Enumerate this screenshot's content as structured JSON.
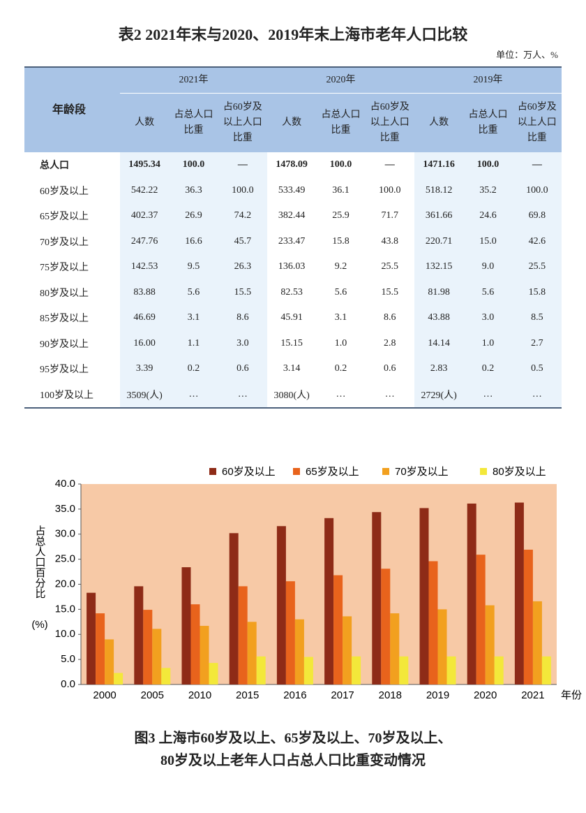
{
  "table": {
    "title": "表2 2021年末与2020、2019年末上海市老年人口比较",
    "unit": "单位：万人、%",
    "header": {
      "age_group": "年龄段",
      "years": [
        "2021年",
        "2020年",
        "2019年"
      ],
      "columns": [
        "人数",
        "占总人口比重",
        "占60岁及以上人口比重"
      ]
    },
    "rows": [
      [
        "总人口",
        "1495.34",
        "100.0",
        "—",
        "1478.09",
        "100.0",
        "—",
        "1471.16",
        "100.0",
        "—"
      ],
      [
        "60岁及以上",
        "542.22",
        "36.3",
        "100.0",
        "533.49",
        "36.1",
        "100.0",
        "518.12",
        "35.2",
        "100.0"
      ],
      [
        "65岁及以上",
        "402.37",
        "26.9",
        "74.2",
        "382.44",
        "25.9",
        "71.7",
        "361.66",
        "24.6",
        "69.8"
      ],
      [
        "70岁及以上",
        "247.76",
        "16.6",
        "45.7",
        "233.47",
        "15.8",
        "43.8",
        "220.71",
        "15.0",
        "42.6"
      ],
      [
        "75岁及以上",
        "142.53",
        "9.5",
        "26.3",
        "136.03",
        "9.2",
        "25.5",
        "132.15",
        "9.0",
        "25.5"
      ],
      [
        "80岁及以上",
        "83.88",
        "5.6",
        "15.5",
        "82.53",
        "5.6",
        "15.5",
        "81.98",
        "5.6",
        "15.8"
      ],
      [
        "85岁及以上",
        "46.69",
        "3.1",
        "8.6",
        "45.91",
        "3.1",
        "8.6",
        "43.88",
        "3.0",
        "8.5"
      ],
      [
        "90岁及以上",
        "16.00",
        "1.1",
        "3.0",
        "15.15",
        "1.0",
        "2.8",
        "14.14",
        "1.0",
        "2.7"
      ],
      [
        "95岁及以上",
        "3.39",
        "0.2",
        "0.6",
        "3.14",
        "0.2",
        "0.6",
        "2.83",
        "0.2",
        "0.5"
      ],
      [
        "100岁及以上",
        "3509(人)",
        "…",
        "…",
        "3080(人)",
        "…",
        "…",
        "2729(人)",
        "…",
        "…"
      ]
    ]
  },
  "chart_data": {
    "type": "bar",
    "title": [
      "图3 上海市60岁及以上、65岁及以上、70岁及以上、",
      "80岁及以上老年人口占总人口比重变动情况"
    ],
    "y_label": "占总人口百分比",
    "y_unit": "(%)",
    "x_label": "年份",
    "categories": [
      "2000",
      "2005",
      "2010",
      "2015",
      "2016",
      "2017",
      "2018",
      "2019",
      "2020",
      "2021"
    ],
    "series": [
      {
        "name": "60岁及以上",
        "color": "#8e2b17",
        "values": [
          18.3,
          19.6,
          23.4,
          30.2,
          31.6,
          33.2,
          34.4,
          35.2,
          36.1,
          36.3
        ]
      },
      {
        "name": "65岁及以上",
        "color": "#e8631c",
        "values": [
          14.2,
          14.9,
          16.0,
          19.6,
          20.6,
          21.8,
          23.1,
          24.6,
          25.9,
          26.9
        ]
      },
      {
        "name": "70岁及以上",
        "color": "#f2a01f",
        "values": [
          9.0,
          11.1,
          11.7,
          12.5,
          13.0,
          13.6,
          14.2,
          15.0,
          15.8,
          16.6
        ]
      },
      {
        "name": "80岁及以上",
        "color": "#f3e83a",
        "values": [
          2.3,
          3.3,
          4.3,
          5.6,
          5.5,
          5.6,
          5.6,
          5.6,
          5.6,
          5.6
        ]
      }
    ],
    "ylim": [
      0,
      40
    ],
    "yticks": [
      {
        "value": 0,
        "label": "0.0"
      },
      {
        "value": 5,
        "label": "5.0"
      },
      {
        "value": 10,
        "label": "10.0"
      },
      {
        "value": 15,
        "label": "15.0"
      },
      {
        "value": 20,
        "label": "20.0"
      },
      {
        "value": 25,
        "label": "25.0"
      },
      {
        "value": 30,
        "label": "30.0"
      },
      {
        "value": 35,
        "label": "35.0"
      },
      {
        "value": 40,
        "label": "40.0"
      }
    ],
    "grid": false
  }
}
